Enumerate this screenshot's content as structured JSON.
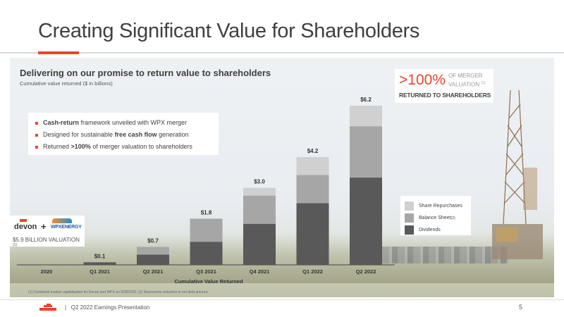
{
  "slide": {
    "title": "Creating Significant Value for Shareholders",
    "subhead": "Delivering on our promise to return value to shareholders",
    "subnote": "Cumulative value returned ($ in billions)",
    "page_number": "5",
    "footer_text": "Q2 2022 Earnings Presentation",
    "footer_separator": "|",
    "footnote": "(1) Combined market capitalization for Devon and WPX on 9/28/2020. (2) Represents reduction in net debt amount."
  },
  "bullets": [
    {
      "bold": "Cash-return",
      "rest": " framework unveiled with WPX merger"
    },
    {
      "pre": "Designed for sustainable ",
      "bold": "free cash flow",
      "post": " generation"
    },
    {
      "pre": "Returned ",
      "bold": ">100%",
      "post": " of merger valuation to shareholders"
    }
  ],
  "callout": {
    "big": ">100%",
    "small_line1": "OF MERGER",
    "small_line2": "VALUATION",
    "small_sup": "(1)",
    "bottom": "RETURNED TO SHAREHOLDERS"
  },
  "logos": {
    "devon": "devon",
    "plus": "+",
    "wpx": "WPXENERGY",
    "valuation": "$5.9 BILLION VALUATION",
    "valuation_sup": "(1)"
  },
  "colors": {
    "accent": "#e8452c",
    "dividends": "#595959",
    "balance_sheet": "#a6a6a6",
    "share_repurchases": "#d0d0d0"
  },
  "chart_data": {
    "type": "bar",
    "stacked": true,
    "title": "",
    "xlabel": "Cumulative Value Returned",
    "ylabel": "",
    "categories": [
      "2020",
      "Q1 2021",
      "Q2 2021",
      "Q3 2021",
      "Q4 2021",
      "Q1 2022",
      "Q2 2022"
    ],
    "totals": [
      "",
      "$0.1",
      "$0.7",
      "$1.8",
      "$3.0",
      "$4.2",
      "$6.2"
    ],
    "series": [
      {
        "name": "Dividends",
        "values": [
          0,
          0.1,
          0.4,
          0.9,
          1.6,
          2.4,
          3.4
        ]
      },
      {
        "name": "Balance Sheet",
        "sup": "(2)",
        "values": [
          0,
          0,
          0.3,
          0.9,
          1.1,
          1.1,
          2.0
        ]
      },
      {
        "name": "Share Repurchases",
        "values": [
          0,
          0,
          0.0,
          0.0,
          0.3,
          0.7,
          0.8
        ]
      }
    ],
    "legend_order": [
      "Share Repurchases",
      "Balance Sheet",
      "Dividends"
    ],
    "ylim": [
      0,
      6.2
    ],
    "grid": false,
    "legend_position": "right"
  }
}
